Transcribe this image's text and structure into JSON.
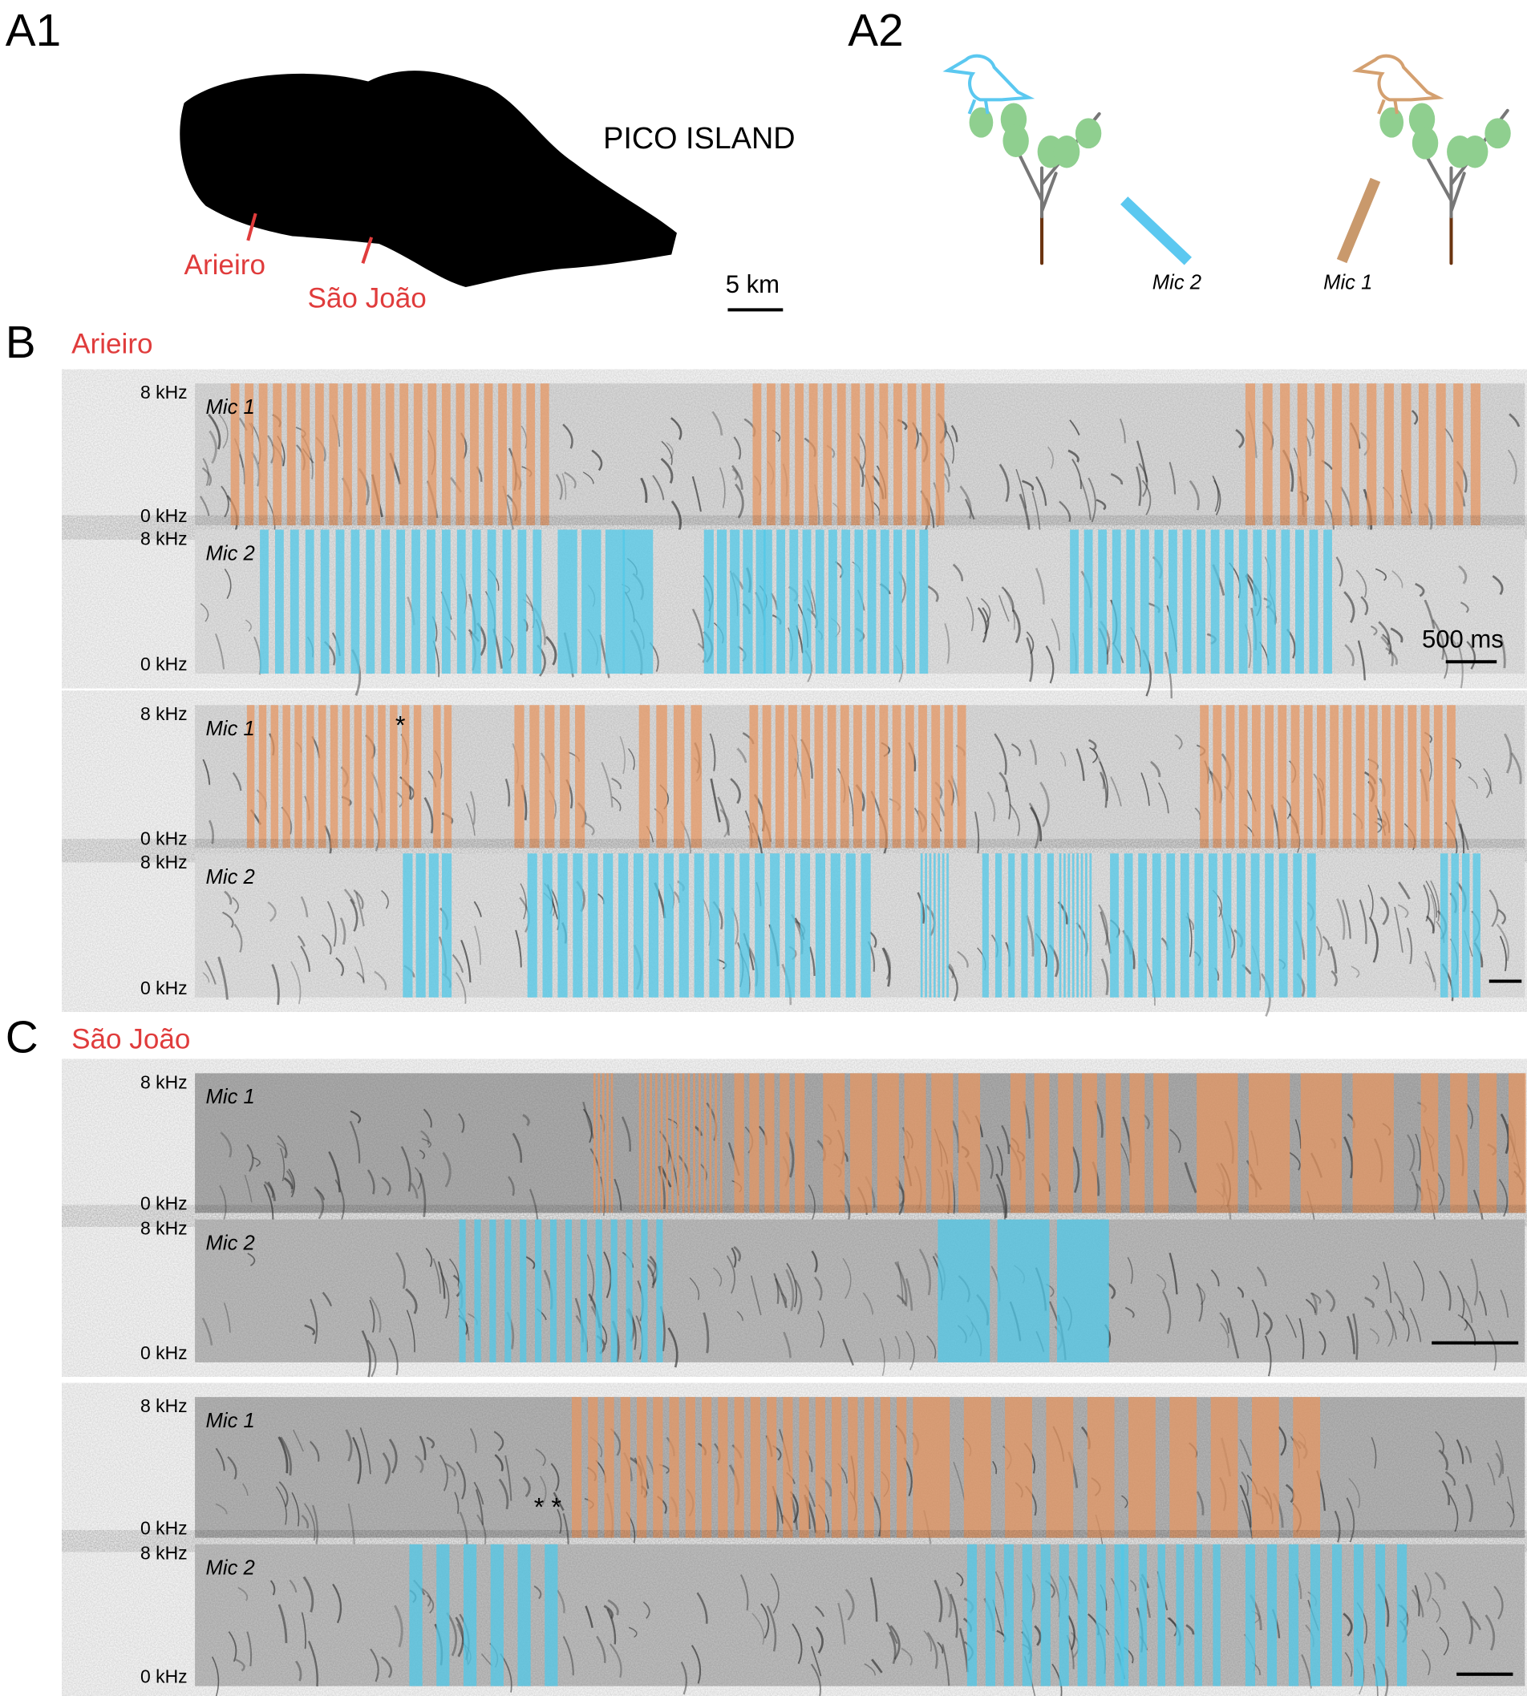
{
  "panels": {
    "a1": {
      "label": "A1",
      "title": "PICO ISLAND",
      "sites": [
        "Arieiro",
        "São João"
      ],
      "scale_bar": "5 km"
    },
    "a2": {
      "label": "A2",
      "mics": [
        "Mic 2",
        "Mic 1"
      ]
    },
    "b": {
      "label": "B",
      "site": "Arieiro",
      "scale_bar": "500 ms",
      "asterisk": "*",
      "spectrograms": [
        {
          "mic": "Mic 1",
          "top": "8 kHz",
          "bottom": "0 kHz"
        },
        {
          "mic": "Mic 2",
          "top": "8 kHz",
          "bottom": "0 kHz"
        },
        {
          "mic": "Mic 1",
          "top": "8 kHz",
          "bottom": "0 kHz"
        },
        {
          "mic": "Mic 2",
          "top": "8 kHz",
          "bottom": "0 kHz"
        }
      ]
    },
    "c": {
      "label": "C",
      "site": "São João",
      "asterisk": "* *",
      "spectrograms": [
        {
          "mic": "Mic 1",
          "top": "8 kHz",
          "bottom": "0 kHz"
        },
        {
          "mic": "Mic 2",
          "top": "8 kHz",
          "bottom": "0 kHz"
        },
        {
          "mic": "Mic 1",
          "top": "8 kHz",
          "bottom": "0 kHz"
        },
        {
          "mic": "Mic 2",
          "top": "8 kHz",
          "bottom": "0 kHz"
        }
      ]
    }
  }
}
